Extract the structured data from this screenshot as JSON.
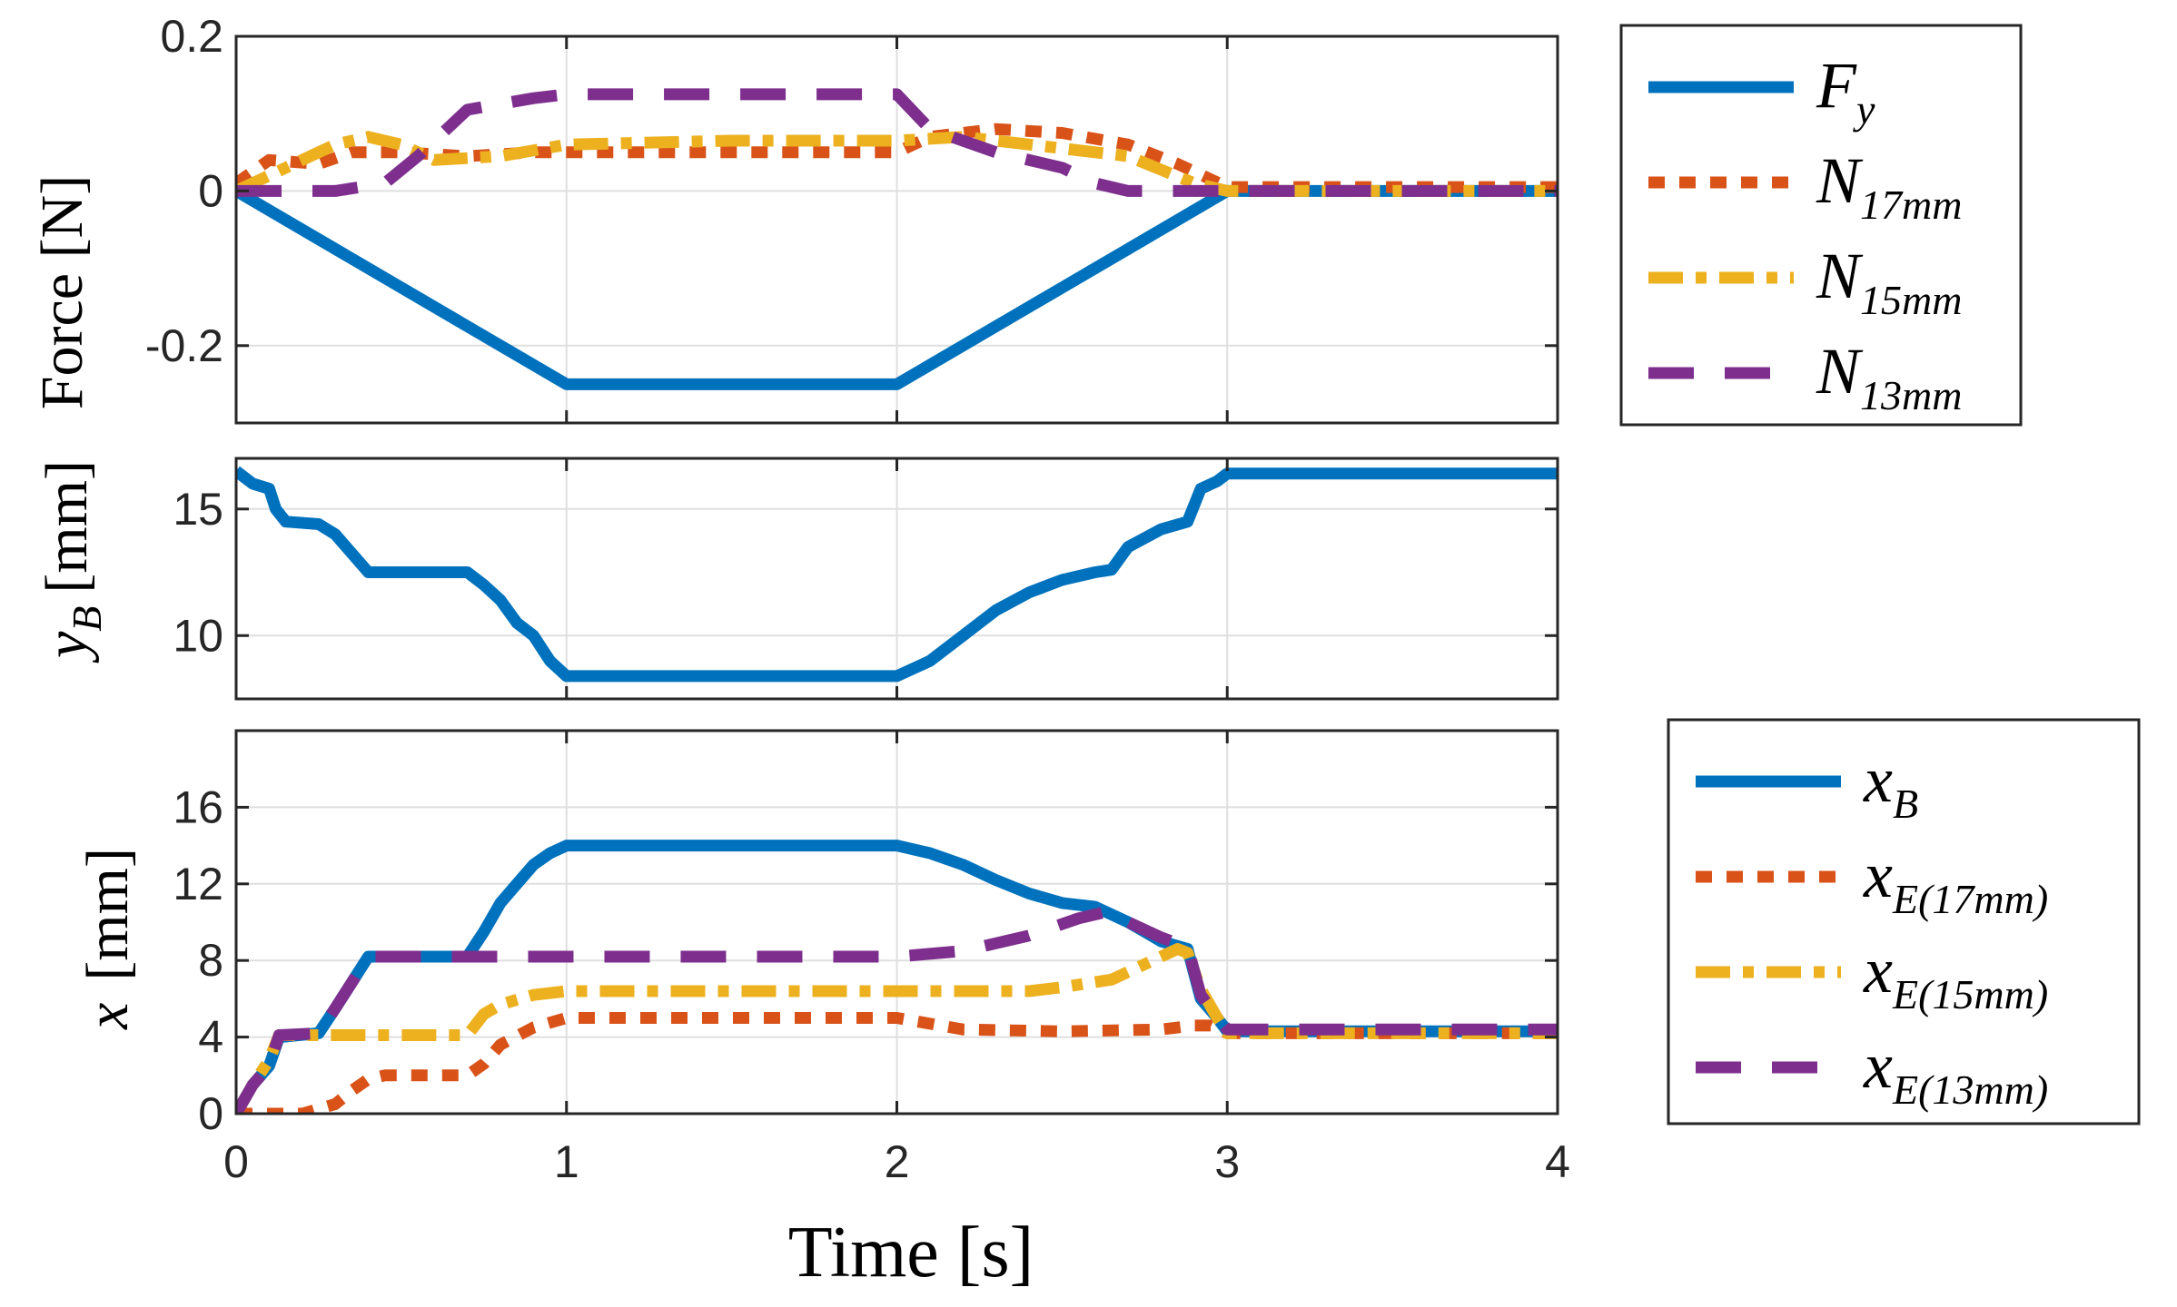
{
  "colors": {
    "blue": "#0072BD",
    "orange": "#D95319",
    "yellow": "#EDB120",
    "purple": "#7E2F8E",
    "grid": "#dfdfdf",
    "axis": "#262626"
  },
  "chart_data": [
    {
      "id": "force",
      "type": "line",
      "ylabel": "Force [N]",
      "xlim": [
        0,
        4
      ],
      "ylim": [
        -0.3,
        0.2
      ],
      "xticks": [
        0,
        1,
        2,
        3,
        4
      ],
      "yticks": [
        -0.2,
        0,
        0.2
      ],
      "ytick_labels": [
        "-0.2",
        "0",
        "0.2"
      ],
      "grid": true,
      "legend": [
        {
          "base": "F",
          "sub": "y",
          "style": "solid",
          "color": "#0072BD"
        },
        {
          "base": "N",
          "sub": "17mm",
          "style": "dotted",
          "color": "#D95319"
        },
        {
          "base": "N",
          "sub": "15mm",
          "style": "dashdot",
          "color": "#EDB120"
        },
        {
          "base": "N",
          "sub": "13mm",
          "style": "dashed",
          "color": "#7E2F8E"
        }
      ],
      "series": [
        {
          "name": "F_y",
          "style": "solid",
          "color": "#0072BD",
          "x": [
            0,
            1,
            2,
            3,
            4
          ],
          "y": [
            0,
            -0.25,
            -0.25,
            0,
            0
          ]
        },
        {
          "name": "N_17mm",
          "style": "dotted",
          "color": "#D95319",
          "x": [
            0,
            0.1,
            0.25,
            0.35,
            0.5,
            0.7,
            0.9,
            1.0,
            1.5,
            2.0,
            2.1,
            2.3,
            2.5,
            2.7,
            2.85,
            3.0,
            4.0
          ],
          "y": [
            0.01,
            0.04,
            0.035,
            0.05,
            0.05,
            0.045,
            0.05,
            0.05,
            0.05,
            0.05,
            0.07,
            0.08,
            0.075,
            0.06,
            0.035,
            0.005,
            0.005
          ]
        },
        {
          "name": "N_15mm",
          "style": "dashdot",
          "color": "#EDB120",
          "x": [
            0,
            0.1,
            0.2,
            0.3,
            0.4,
            0.5,
            0.6,
            0.8,
            1.0,
            1.5,
            2.0,
            2.2,
            2.5,
            2.7,
            2.9,
            3.0,
            4.0
          ],
          "y": [
            0,
            0.02,
            0.04,
            0.06,
            0.07,
            0.06,
            0.04,
            0.045,
            0.06,
            0.065,
            0.065,
            0.07,
            0.055,
            0.045,
            0.01,
            0,
            0
          ]
        },
        {
          "name": "N_13mm",
          "style": "dashed",
          "color": "#7E2F8E",
          "x": [
            0,
            0.3,
            0.45,
            0.55,
            0.7,
            0.9,
            1.0,
            1.5,
            2.0,
            2.1,
            2.3,
            2.5,
            2.6,
            2.7,
            3.0,
            4.0
          ],
          "y": [
            0,
            0,
            0.01,
            0.045,
            0.105,
            0.12,
            0.125,
            0.125,
            0.125,
            0.08,
            0.05,
            0.03,
            0.01,
            0,
            0,
            0
          ]
        }
      ]
    },
    {
      "id": "yB",
      "type": "line",
      "ylabel": "y_B [mm]",
      "ylabel_base": "y",
      "ylabel_sub": "B",
      "ylabel_unit": "[mm]",
      "xlim": [
        0,
        4
      ],
      "ylim": [
        7.5,
        17
      ],
      "xticks": [
        0,
        1,
        2,
        3,
        4
      ],
      "yticks": [
        10,
        15
      ],
      "ytick_labels": [
        "10",
        "15"
      ],
      "grid": true,
      "series": [
        {
          "name": "y_B",
          "style": "solid",
          "color": "#0072BD",
          "x": [
            0,
            0.05,
            0.1,
            0.12,
            0.15,
            0.25,
            0.3,
            0.4,
            0.7,
            0.75,
            0.8,
            0.85,
            0.9,
            0.95,
            1.0,
            1.5,
            2.0,
            2.1,
            2.2,
            2.3,
            2.4,
            2.5,
            2.6,
            2.65,
            2.7,
            2.8,
            2.88,
            2.92,
            2.97,
            3.0,
            3.5,
            4.0
          ],
          "y": [
            16.5,
            16.0,
            15.8,
            15.0,
            14.5,
            14.4,
            14.0,
            12.5,
            12.5,
            12.0,
            11.4,
            10.5,
            10.0,
            9.0,
            8.4,
            8.4,
            8.4,
            9.0,
            10.0,
            11.0,
            11.7,
            12.2,
            12.5,
            12.6,
            13.5,
            14.2,
            14.5,
            15.8,
            16.1,
            16.4,
            16.4,
            16.4
          ]
        }
      ]
    },
    {
      "id": "x",
      "type": "line",
      "ylabel": "x [mm]",
      "ylabel_base": "x",
      "ylabel_unit": "[mm]",
      "xlabel": "Time [s]",
      "xlim": [
        0,
        4
      ],
      "ylim": [
        0,
        20
      ],
      "xticks": [
        0,
        1,
        2,
        3,
        4
      ],
      "xtick_labels": [
        "0",
        "1",
        "2",
        "3",
        "4"
      ],
      "yticks": [
        0,
        4,
        8,
        12,
        16
      ],
      "ytick_labels": [
        "0",
        "4",
        "8",
        "12",
        "16"
      ],
      "grid": true,
      "legend": [
        {
          "base": "x",
          "sub": "B",
          "style": "solid",
          "color": "#0072BD"
        },
        {
          "base": "x",
          "sub": "E(17mm)",
          "style": "dotted",
          "color": "#D95319"
        },
        {
          "base": "x",
          "sub": "E(15mm)",
          "style": "dashdot",
          "color": "#EDB120"
        },
        {
          "base": "x",
          "sub": "E(13mm)",
          "style": "dashed",
          "color": "#7E2F8E"
        }
      ],
      "series": [
        {
          "name": "x_B",
          "style": "solid",
          "color": "#0072BD",
          "x": [
            0,
            0.05,
            0.1,
            0.13,
            0.25,
            0.3,
            0.4,
            0.7,
            0.75,
            0.8,
            0.85,
            0.9,
            0.95,
            1.0,
            1.5,
            2.0,
            2.1,
            2.2,
            2.3,
            2.4,
            2.5,
            2.6,
            2.7,
            2.75,
            2.8,
            2.88,
            2.92,
            2.97,
            3.0,
            4.0
          ],
          "y": [
            0,
            1.5,
            2.5,
            4.0,
            4.2,
            5.5,
            8.2,
            8.2,
            9.5,
            11.0,
            12.0,
            13.0,
            13.6,
            14.0,
            14.0,
            14.0,
            13.6,
            13.0,
            12.2,
            11.5,
            11.0,
            10.8,
            10.0,
            9.5,
            9.0,
            8.6,
            6.0,
            5.0,
            4.3,
            4.3
          ]
        }
      ]
    }
  ],
  "legend_text": {
    "force": [
      {
        "base": "F",
        "sub": "y"
      },
      {
        "base": "N",
        "sub": "17mm"
      },
      {
        "base": "N",
        "sub": "15mm"
      },
      {
        "base": "N",
        "sub": "13mm"
      }
    ],
    "x": [
      {
        "base": "x",
        "sub": "B"
      },
      {
        "base": "x",
        "sub": "E(17mm)"
      },
      {
        "base": "x",
        "sub": "E(15mm)"
      },
      {
        "base": "x",
        "sub": "E(13mm)"
      }
    ]
  },
  "x_extra_series": [
    {
      "name": "x_E(17mm)",
      "style": "dotted",
      "color": "#D95319",
      "x": [
        0,
        0.2,
        0.3,
        0.35,
        0.4,
        0.45,
        0.5,
        0.7,
        0.75,
        0.8,
        0.9,
        1.0,
        1.5,
        2.0,
        2.2,
        2.5,
        2.8,
        2.9,
        2.95,
        3.0,
        4.0
      ],
      "y": [
        0,
        0,
        0.5,
        1.2,
        1.8,
        2.0,
        2.0,
        2.0,
        2.6,
        3.6,
        4.5,
        5.0,
        5.0,
        5.0,
        4.4,
        4.3,
        4.4,
        4.6,
        4.6,
        4.2,
        4.2
      ]
    },
    {
      "name": "x_E(15mm)",
      "style": "dashdot",
      "color": "#EDB120",
      "x": [
        0,
        0.05,
        0.1,
        0.13,
        0.25,
        0.7,
        0.75,
        0.8,
        0.9,
        1.0,
        1.5,
        2.0,
        2.4,
        2.5,
        2.65,
        2.75,
        2.85,
        2.88,
        2.92,
        2.97,
        3.0,
        4.0
      ],
      "y": [
        0,
        1.5,
        2.8,
        4.1,
        4.1,
        4.1,
        5.2,
        5.7,
        6.2,
        6.4,
        6.4,
        6.4,
        6.4,
        6.6,
        7.0,
        7.8,
        8.6,
        8.4,
        6.5,
        5.0,
        4.2,
        4.2
      ]
    },
    {
      "name": "x_E(13mm)",
      "style": "dashed",
      "color": "#7E2F8E",
      "x": [
        0,
        0.05,
        0.1,
        0.13,
        0.25,
        0.3,
        0.4,
        0.7,
        1.0,
        1.5,
        2.0,
        2.2,
        2.4,
        2.55,
        2.65,
        2.7,
        2.8,
        2.88,
        2.92,
        2.97,
        3.0,
        4.0
      ],
      "y": [
        0,
        1.5,
        2.5,
        4.1,
        4.2,
        5.5,
        8.2,
        8.2,
        8.2,
        8.2,
        8.2,
        8.5,
        9.3,
        10.2,
        10.6,
        10.0,
        9.2,
        8.7,
        6.2,
        5.0,
        4.4,
        4.4
      ]
    }
  ]
}
